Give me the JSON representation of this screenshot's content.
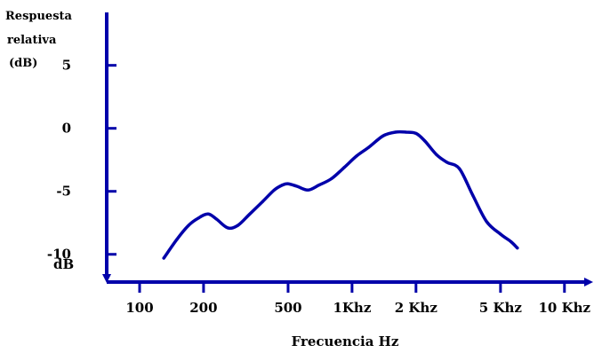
{
  "chart_data": {
    "type": "line",
    "title": "",
    "ylabel": [
      "Respuesta",
      "relativa",
      "(dB)"
    ],
    "xlabel": "Frecuencia Hz",
    "x_scale": "log",
    "xlim": [
      70,
      13000
    ],
    "ylim": [
      -12.2,
      9.2
    ],
    "grid": false,
    "color": "#0000aa",
    "y_ticks": [
      {
        "value": 5,
        "label": "5"
      },
      {
        "value": 0,
        "label": "0"
      },
      {
        "value": -5,
        "label": "-5"
      },
      {
        "value": -10,
        "label": "-10"
      }
    ],
    "y_unit_label": "dB",
    "x_ticks": [
      {
        "value": 100,
        "label": "100"
      },
      {
        "value": 200,
        "label": "200"
      },
      {
        "value": 500,
        "label": "500"
      },
      {
        "value": 1000,
        "label": "1Khz"
      },
      {
        "value": 2000,
        "label": "2 Khz"
      },
      {
        "value": 5000,
        "label": "5 Khz"
      },
      {
        "value": 10000,
        "label": "10 Khz"
      }
    ],
    "series": [
      {
        "x": [
          130,
          150,
          170,
          190,
          210,
          230,
          260,
          290,
          330,
          380,
          430,
          470,
          500,
          550,
          620,
          700,
          800,
          920,
          1050,
          1200,
          1400,
          1600,
          1800,
          2000,
          2200,
          2500,
          2800,
          3200,
          3700,
          4300,
          5000,
          5600,
          6000
        ],
        "y": [
          -10.3,
          -8.8,
          -7.7,
          -7.1,
          -6.8,
          -7.2,
          -7.9,
          -7.7,
          -6.8,
          -5.8,
          -4.9,
          -4.5,
          -4.4,
          -4.6,
          -4.9,
          -4.5,
          -4.0,
          -3.1,
          -2.2,
          -1.5,
          -0.6,
          -0.3,
          -0.3,
          -0.4,
          -1.0,
          -2.1,
          -2.7,
          -3.2,
          -5.3,
          -7.4,
          -8.4,
          -9.0,
          -9.5
        ]
      }
    ]
  }
}
